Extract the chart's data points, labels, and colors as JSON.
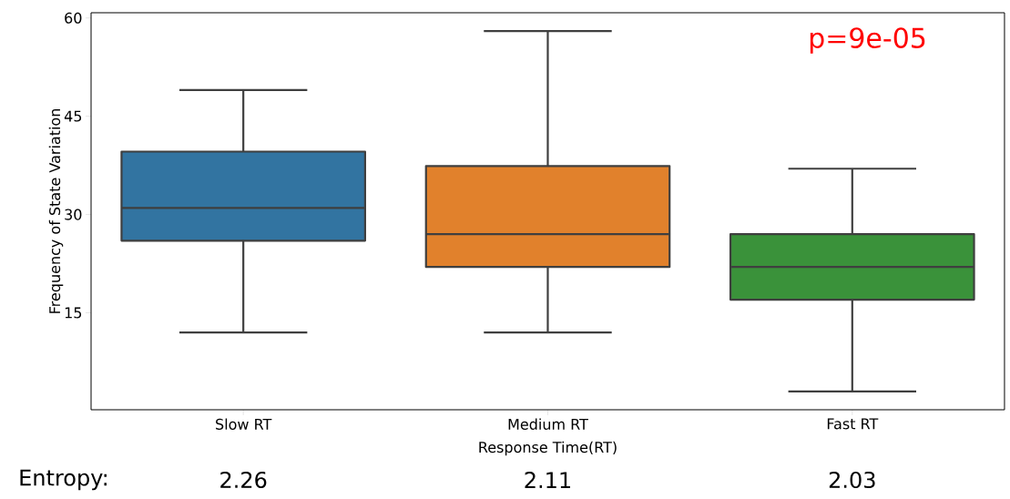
{
  "chart_data": {
    "type": "box",
    "xlabel": "Response Time(RT)",
    "ylabel": "Frequency of State Variation",
    "categories": [
      "Slow RT",
      "Medium RT",
      "Fast RT"
    ],
    "boxes": [
      {
        "low": 12,
        "q1": 26,
        "median": 31,
        "q3": 39.6,
        "high": 49
      },
      {
        "low": 12,
        "q1": 22,
        "median": 27,
        "q3": 37.4,
        "high": 58
      },
      {
        "low": 3,
        "q1": 17,
        "median": 22,
        "q3": 27,
        "high": 37
      }
    ],
    "colors": [
      "#3274a1",
      "#e1812c",
      "#3a923a"
    ],
    "ylim": [
      0.2,
      60.8
    ],
    "yticks": [
      15,
      30,
      45,
      60
    ],
    "grid": false,
    "annotations": [
      "p=9e-05",
      "Entropy:",
      "2.26",
      "2.11",
      "2.03"
    ]
  }
}
